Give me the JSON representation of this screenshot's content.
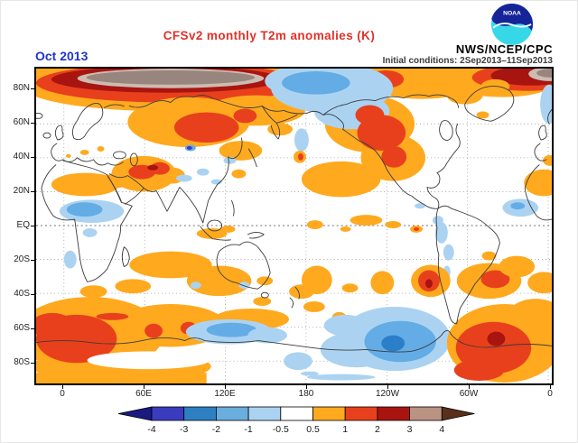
{
  "header": {
    "title": "CFSv2 monthly T2m anomalies (K)",
    "forecast_month": "Oct 2013",
    "agency": "NWS/NCEP/CPC",
    "initial_conditions": "Initial conditions: 2Sep2013–11Sep2013",
    "logo_text": "NOAA",
    "title_color": "#e0322a",
    "forecast_month_color": "#1f35cf"
  },
  "map": {
    "lat_ticks": [
      "80N",
      "60N",
      "40N",
      "20N",
      "EQ",
      "20S",
      "40S",
      "60S",
      "80S"
    ],
    "lon_ticks": [
      "0",
      "60E",
      "120E",
      "180",
      "120W",
      "60W",
      "0"
    ]
  },
  "colorbar": {
    "tick_labels": [
      "-4",
      "-3",
      "-2",
      "-1",
      "-0.5",
      "0.5",
      "1",
      "2",
      "3",
      "4"
    ],
    "segment_colors": [
      "#3B3BBF",
      "#2E7FC2",
      "#69AEDE",
      "#ABD3F1",
      "#FFFFFF",
      "#FFA91E",
      "#E8401C",
      "#A81410",
      "#BB9382"
    ],
    "below_arrow_color": "#1A1A80",
    "above_arrow_color": "#58301C"
  },
  "chart_data": {
    "type": "heatmap",
    "title": "CFSv2 monthly T2m anomalies (K)",
    "variable": "2-meter air temperature anomaly",
    "units": "K",
    "forecast_month": "Oct 2013",
    "initial_conditions": "2Sep2013–11Sep2013",
    "source": "NWS/NCEP/CPC",
    "projection": "global cylindrical lat-lon, 0E at left edge, dateline near center",
    "x_ticks": [
      "0",
      "60E",
      "120E",
      "180",
      "120W",
      "60W",
      "0"
    ],
    "y_ticks": [
      "80N",
      "60N",
      "40N",
      "20N",
      "EQ",
      "20S",
      "40S",
      "60S",
      "80S"
    ],
    "scale_levels": [
      -4,
      -3,
      -2,
      -1,
      -0.5,
      0.5,
      1,
      2,
      3,
      4
    ],
    "scale_colors_below_to_above": [
      "#1A1A80",
      "#3B3BBF",
      "#2E7FC2",
      "#69AEDE",
      "#ABD3F1",
      "#FFFFFF",
      "#FFA91E",
      "#E8401C",
      "#A81410",
      "#BB9382",
      "#58301C"
    ],
    "grid": "dotted graticule every 20 deg latitude / 60 deg longitude",
    "legend_position": "horizontal colorbar at bottom with out-of-range arrow ends",
    "notable_anomalies": [
      {
        "region": "Central Arctic / Kara-Laptev Seas",
        "anomaly_K": "+3 to +4"
      },
      {
        "region": "Arctic coastal band (Siberia to Canada)",
        "anomaly_K": "+2 to +3"
      },
      {
        "region": "Bering Sea / Gulf of Alaska",
        "anomaly_K": "-1 to -3"
      },
      {
        "region": "Alaska and western North America",
        "anomaly_K": "+1 to +2"
      },
      {
        "region": "Scandinavia / northwest Russia",
        "anomaly_K": "+1 to +2"
      },
      {
        "region": "Middle East / Iran",
        "anomaly_K": "+1 to +3"
      },
      {
        "region": "Sahara",
        "anomaly_K": "+0.5 to +1"
      },
      {
        "region": "Central Africa / Sahel",
        "anomaly_K": "-0.5 to -2"
      },
      {
        "region": "Amazon / central Brazil",
        "anomaly_K": "-0.5 to -1"
      },
      {
        "region": "Northern Argentina",
        "anomaly_K": "+1 to +2"
      },
      {
        "region": "South Atlantic near 40S",
        "anomaly_K": "+1 to +2"
      },
      {
        "region": "Southern Ocean, Indian/Atlantic sectors",
        "anomaly_K": "+0.5 to +2"
      },
      {
        "region": "Bellingshausen-Amundsen Seas (Antarctica)",
        "anomaly_K": "-1 to -3"
      },
      {
        "region": "Weddell Sea sector (Antarctica)",
        "anomaly_K": "+1 to +3"
      }
    ]
  }
}
